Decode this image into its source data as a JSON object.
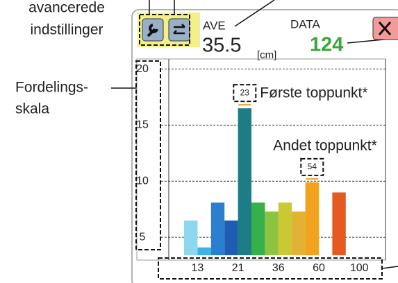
{
  "callouts": {
    "advanced_settings": [
      "avancerede",
      "indstillinger"
    ],
    "distribution_scale": [
      "Fordelings-",
      "skala"
    ]
  },
  "display": {
    "ave_label": "AVE",
    "ave_value": 35.5,
    "unit": "[cm]",
    "data_label": "DATA",
    "data_value": 124
  },
  "chart_data": {
    "type": "bar",
    "categories": [
      null,
      "13",
      null,
      null,
      "21",
      null,
      null,
      "36",
      null,
      null,
      "60",
      null,
      null,
      "100"
    ],
    "values": [
      6.5,
      4.1,
      8.1,
      6.5,
      16.5,
      8.1,
      7.3,
      8.1,
      7.3,
      9.9,
      null,
      9.0,
      null,
      null
    ],
    "colors": [
      "#8fd6ef",
      "#3fb2e6",
      "#2b7fd0",
      "#1f5cb4",
      "#1d7c86",
      "#35b04a",
      "#8cc43f",
      "#c9c934",
      "#e2b232",
      "#f2a21f",
      "#ffffff",
      "#e65a22",
      "#ffffff",
      "#ffffff"
    ],
    "ylim": [
      3.4,
      20.9
    ],
    "yticks": [
      5,
      10,
      15,
      20
    ],
    "grid": true,
    "peaks": [
      {
        "size": "23",
        "label": "Første toppunkt*",
        "index": 4
      },
      {
        "size": "54",
        "label": "Andet toppunkt*",
        "index": 9
      }
    ]
  }
}
